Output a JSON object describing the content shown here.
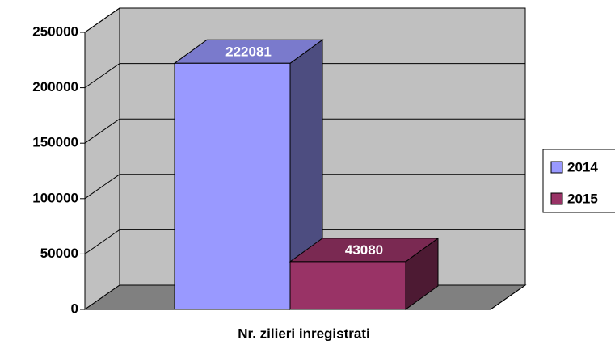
{
  "chart_data": {
    "type": "bar",
    "categories": [
      "Nr. zilieri inregistrati"
    ],
    "series": [
      {
        "name": "2014",
        "color": "#9999ff",
        "values": [
          222081
        ]
      },
      {
        "name": "2015",
        "color": "#993366",
        "values": [
          43080
        ]
      }
    ],
    "ylim": [
      0,
      250000
    ],
    "yticks": [
      0,
      50000,
      100000,
      150000,
      200000,
      250000
    ],
    "grid": true,
    "legend": "right"
  }
}
